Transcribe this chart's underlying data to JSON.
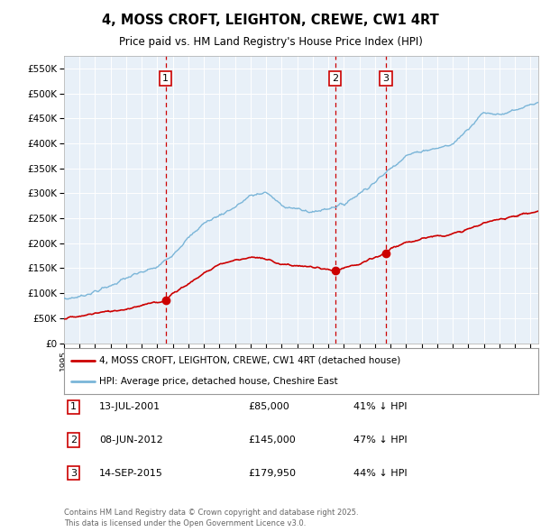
{
  "title": "4, MOSS CROFT, LEIGHTON, CREWE, CW1 4RT",
  "subtitle": "Price paid vs. HM Land Registry's House Price Index (HPI)",
  "ylabel_ticks": [
    "£0",
    "£50K",
    "£100K",
    "£150K",
    "£200K",
    "£250K",
    "£300K",
    "£350K",
    "£400K",
    "£450K",
    "£500K",
    "£550K"
  ],
  "ytick_values": [
    0,
    50000,
    100000,
    150000,
    200000,
    250000,
    300000,
    350000,
    400000,
    450000,
    500000,
    550000
  ],
  "ylim": [
    0,
    575000
  ],
  "plot_bg_color": "#e8f0f8",
  "fig_bg_color": "#ffffff",
  "grid_color": "#c8d8e8",
  "hpi_color": "#7ab5d8",
  "price_color": "#cc0000",
  "vline_color": "#cc0000",
  "purchases": [
    {
      "date_num": 2001.54,
      "price": 85000,
      "label": "1"
    },
    {
      "date_num": 2012.44,
      "price": 145000,
      "label": "2"
    },
    {
      "date_num": 2015.71,
      "price": 179950,
      "label": "3"
    }
  ],
  "legend_line1": "4, MOSS CROFT, LEIGHTON, CREWE, CW1 4RT (detached house)",
  "legend_line2": "HPI: Average price, detached house, Cheshire East",
  "table_rows": [
    {
      "num": "1",
      "date": "13-JUL-2001",
      "price": "£85,000",
      "hpi": "41% ↓ HPI"
    },
    {
      "num": "2",
      "date": "08-JUN-2012",
      "price": "£145,000",
      "hpi": "47% ↓ HPI"
    },
    {
      "num": "3",
      "date": "14-SEP-2015",
      "price": "£179,950",
      "hpi": "44% ↓ HPI"
    }
  ],
  "footer": "Contains HM Land Registry data © Crown copyright and database right 2025.\nThis data is licensed under the Open Government Licence v3.0.",
  "xmin": 1995.0,
  "xmax": 2025.5,
  "hpi_years": [
    1995,
    1996,
    1997,
    1998,
    1999,
    2000,
    2001,
    2002,
    2003,
    2004,
    2005,
    2006,
    2007,
    2008,
    2009,
    2010,
    2011,
    2012,
    2013,
    2014,
    2015,
    2016,
    2017,
    2018,
    2019,
    2020,
    2021,
    2022,
    2023,
    2024,
    2025.4
  ],
  "hpi_values": [
    88000,
    93000,
    103000,
    115000,
    130000,
    142000,
    152000,
    178000,
    210000,
    240000,
    256000,
    272000,
    295000,
    302000,
    276000,
    268000,
    262000,
    270000,
    278000,
    300000,
    322000,
    350000,
    375000,
    385000,
    390000,
    398000,
    430000,
    462000,
    458000,
    465000,
    480000
  ],
  "price_years": [
    1995,
    1996,
    1997,
    1998,
    1999,
    2000,
    2001.54,
    2002,
    2003,
    2004,
    2005,
    2006,
    2007,
    2008,
    2009,
    2010,
    2011,
    2012.44,
    2013,
    2014,
    2015.71,
    2016,
    2017,
    2018,
    2019,
    2020,
    2021,
    2022,
    2023,
    2024,
    2025.4
  ],
  "price_values": [
    50000,
    53000,
    60000,
    64000,
    68000,
    76000,
    85000,
    100000,
    118000,
    140000,
    158000,
    166000,
    172000,
    168000,
    158000,
    155000,
    152000,
    145000,
    150000,
    158000,
    179950,
    190000,
    200000,
    210000,
    215000,
    218000,
    228000,
    240000,
    248000,
    255000,
    263000
  ]
}
